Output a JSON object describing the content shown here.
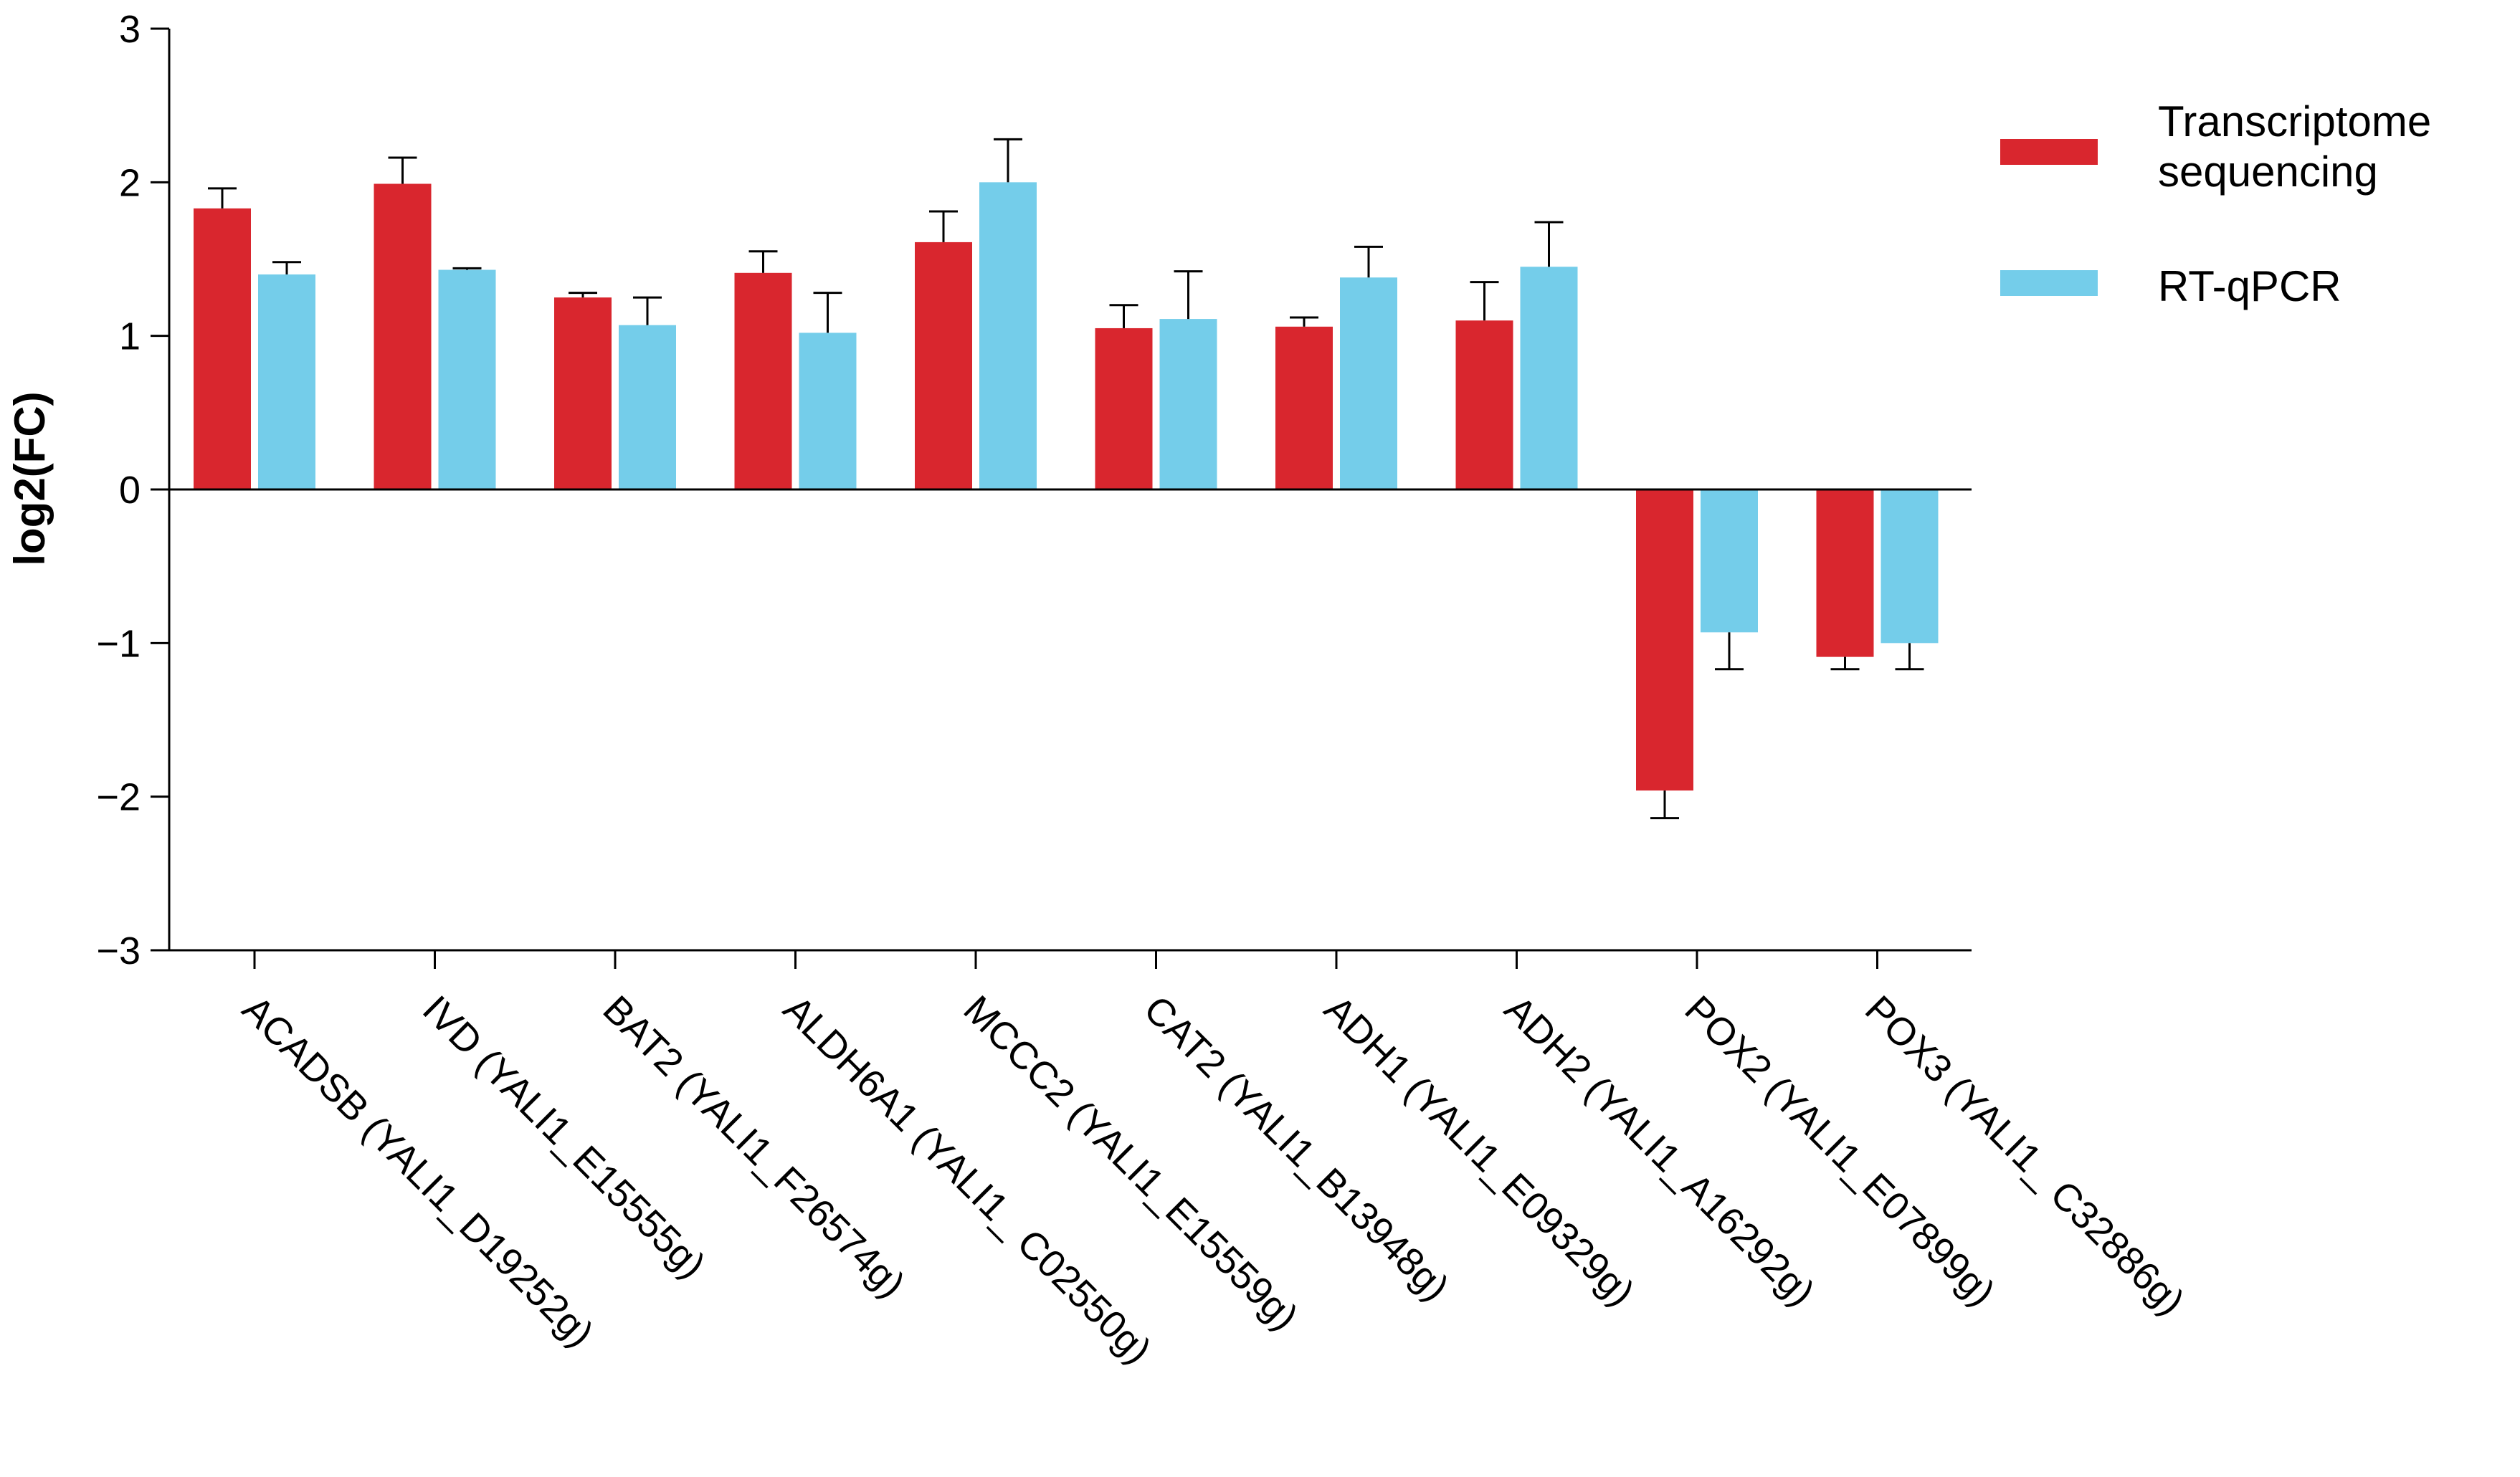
{
  "chart_data": {
    "type": "bar",
    "title": "",
    "xlabel": "",
    "ylabel": "log2(FC)",
    "ylim": [
      -3,
      3
    ],
    "yticks": [
      3,
      2,
      1,
      0,
      -1,
      -2,
      -3
    ],
    "ytick_labels": [
      "3",
      "2",
      "1",
      "0",
      "−1",
      "−2",
      "−3"
    ],
    "grid": false,
    "legend_position": "top-right",
    "categories": [
      "ACADSB (YALI1_D19252g)",
      "IVD (YALI1_E15555g)",
      "BAT2 (YALI1_F26574g)",
      "ALDH6A1 (YALI1_ C02550g)",
      "MCCC2 (YALI1_E15559g)",
      "CAT2 (YALI1_B13948g)",
      "ADH1 (YALI1_E09329g)",
      "ADH2 (YALI1_A16292g)",
      "POX2 (YALI1_E07899g)",
      "POX3 (YALI1_ C32886g)"
    ],
    "series": [
      {
        "name": "Transcriptome sequencing",
        "legend_lines": [
          "Transcriptome",
          "sequencing"
        ],
        "color": "#D9262E",
        "values": [
          1.83,
          1.99,
          1.25,
          1.41,
          1.61,
          1.05,
          1.06,
          1.1,
          -1.96,
          -1.09
        ],
        "errors": [
          0.13,
          0.17,
          0.03,
          0.14,
          0.2,
          0.15,
          0.06,
          0.25,
          0.18,
          0.08
        ]
      },
      {
        "name": "RT-qPCR",
        "legend_lines": [
          "RT-qPCR"
        ],
        "color": "#74CDEA",
        "values": [
          1.4,
          1.43,
          1.07,
          1.02,
          2.0,
          1.11,
          1.38,
          1.45,
          -0.93,
          -1.0
        ],
        "errors": [
          0.08,
          0.01,
          0.18,
          0.26,
          0.28,
          0.31,
          0.2,
          0.29,
          0.24,
          0.17
        ]
      }
    ]
  }
}
